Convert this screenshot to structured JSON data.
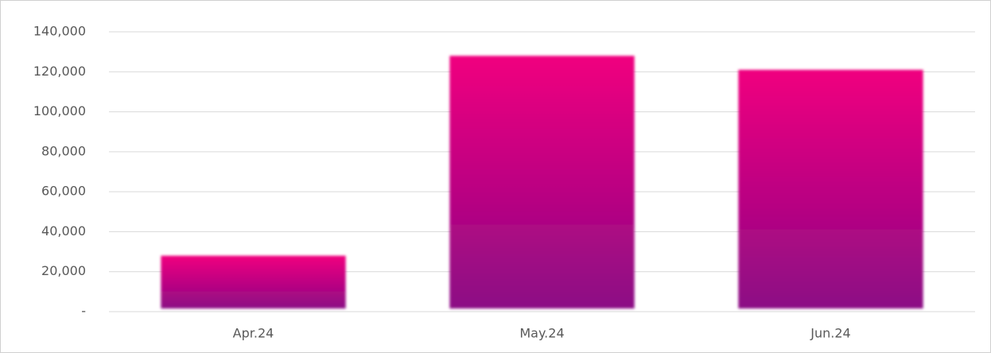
{
  "chart_data": {
    "type": "bar",
    "categories": [
      "Apr.24",
      "May.24",
      "Jun.24"
    ],
    "values": [
      28000,
      128000,
      121000
    ],
    "gradient": [
      "#f0007f",
      "#8c0a85"
    ],
    "ylim": [
      0,
      140000
    ],
    "yticks": [
      {
        "value": 0,
        "label": "-"
      },
      {
        "value": 20000,
        "label": "20,000"
      },
      {
        "value": 40000,
        "label": "40,000"
      },
      {
        "value": 60000,
        "label": "60,000"
      },
      {
        "value": 80000,
        "label": "80,000"
      },
      {
        "value": 100000,
        "label": "100,000"
      },
      {
        "value": 120000,
        "label": "120,000"
      },
      {
        "value": 140000,
        "label": "140,000"
      }
    ],
    "grid": true
  }
}
